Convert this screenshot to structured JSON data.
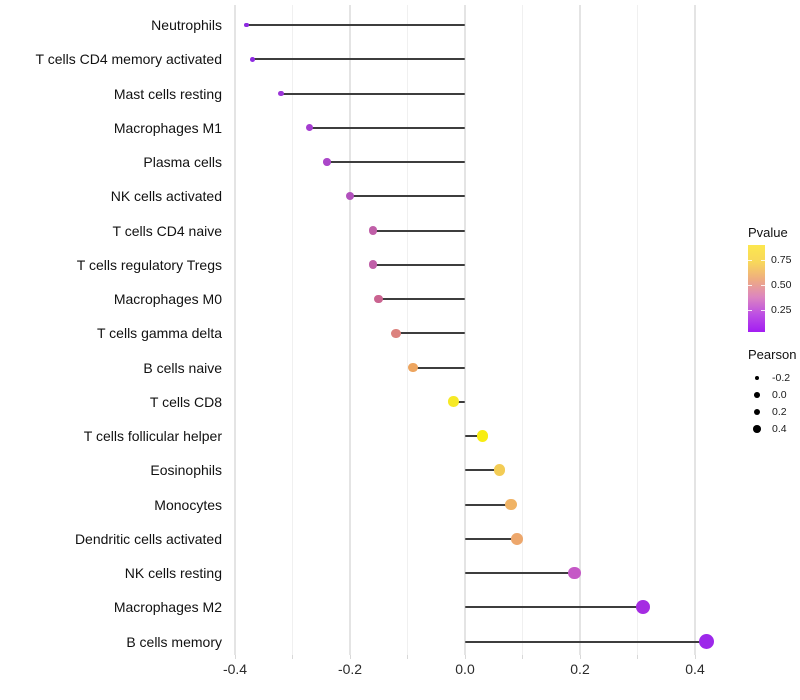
{
  "chart_data": {
    "type": "scatter",
    "variant": "lollipop",
    "title": "",
    "xlabel": "",
    "ylabel": "",
    "xlim": [
      -0.45,
      0.45
    ],
    "x_ticks": [
      -0.4,
      -0.2,
      0.0,
      0.2,
      0.4
    ],
    "x_tick_labels": [
      "-0.4",
      "-0.2",
      "0.0",
      "0.2",
      "0.4"
    ],
    "x_minor_ticks": [
      -0.3,
      -0.1,
      0.1,
      0.3
    ],
    "grid": true,
    "legend_position": "right",
    "points": [
      {
        "label": "Neutrophils",
        "pearson": -0.38,
        "color": "#8e2ae1"
      },
      {
        "label": "T cells CD4 memory activated",
        "pearson": -0.37,
        "color": "#8e2ae1"
      },
      {
        "label": "Mast cells resting",
        "pearson": -0.32,
        "color": "#9c35d8"
      },
      {
        "label": "Macrophages M1",
        "pearson": -0.27,
        "color": "#a53dd0"
      },
      {
        "label": "Plasma cells",
        "pearson": -0.24,
        "color": "#ab47c9"
      },
      {
        "label": "NK cells activated",
        "pearson": -0.2,
        "color": "#b251bd"
      },
      {
        "label": "T cells CD4 naive",
        "pearson": -0.16,
        "color": "#c05fa8"
      },
      {
        "label": "T cells regulatory  Tregs",
        "pearson": -0.16,
        "color": "#c05fa8"
      },
      {
        "label": "Macrophages M0",
        "pearson": -0.15,
        "color": "#ca6390"
      },
      {
        "label": "T cells gamma delta",
        "pearson": -0.12,
        "color": "#dc827e"
      },
      {
        "label": "B cells naive",
        "pearson": -0.09,
        "color": "#eda55f"
      },
      {
        "label": "T cells CD8",
        "pearson": -0.02,
        "color": "#f6e926"
      },
      {
        "label": "T cells follicular helper",
        "pearson": 0.03,
        "color": "#f8ed12"
      },
      {
        "label": "Eosinophils",
        "pearson": 0.06,
        "color": "#f3cc55"
      },
      {
        "label": "Monocytes",
        "pearson": 0.08,
        "color": "#f0b365"
      },
      {
        "label": "Dendritic cells activated",
        "pearson": 0.09,
        "color": "#eda76c"
      },
      {
        "label": "NK cells resting",
        "pearson": 0.19,
        "color": "#c558c6"
      },
      {
        "label": "Macrophages M2",
        "pearson": 0.31,
        "color": "#a52ce2"
      },
      {
        "label": "B cells memory",
        "pearson": 0.42,
        "color": "#9d28ea"
      }
    ],
    "legends": {
      "pvalue": {
        "title": "Pvalue",
        "tick_labels": [
          "0.75",
          "0.50",
          "0.25"
        ],
        "tick_values": [
          0.75,
          0.5,
          0.25
        ],
        "range": [
          0.9,
          0.03
        ],
        "gradient_colors": [
          "#fce74e",
          "#f8d75b",
          "#eeab82",
          "#dc85c0",
          "#bc4ee4",
          "#a31df2"
        ]
      },
      "pearson": {
        "title": "Pearson",
        "entries": [
          "-0.2",
          "0.0",
          "0.2",
          "0.4"
        ]
      }
    },
    "style": {
      "stem_color": "#3d3d3d",
      "background": "#ffffff",
      "major_grid_color": "#e4e4e4",
      "minor_grid_color": "#f0f0f0"
    }
  }
}
